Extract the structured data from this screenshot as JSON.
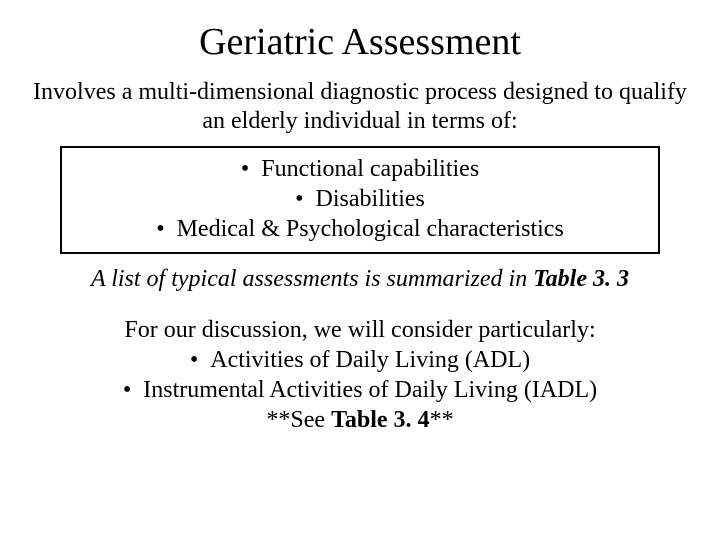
{
  "title": "Geriatric Assessment",
  "intro": "Involves a multi-dimensional diagnostic process designed to qualify an elderly individual in terms of:",
  "box": {
    "items": [
      "Functional capabilities",
      "Disabilities",
      "Medical & Psychological characteristics"
    ]
  },
  "summary": {
    "text_before": "A list of typical assessments is summarized in ",
    "ref": "Table 3. 3"
  },
  "discussion": {
    "lead": "For our discussion, we will consider particularly:",
    "items": [
      "Activities of Daily Living (ADL)",
      "Instrumental Activities of Daily Living (IADL)"
    ],
    "see_before": "**See ",
    "see_ref": "Table 3. 4",
    "see_after": "**"
  },
  "colors": {
    "background": "#ffffff",
    "text": "#000000",
    "border": "#000000"
  },
  "fonts": {
    "family": "Times New Roman",
    "title_size_pt": 38,
    "body_size_pt": 24
  }
}
